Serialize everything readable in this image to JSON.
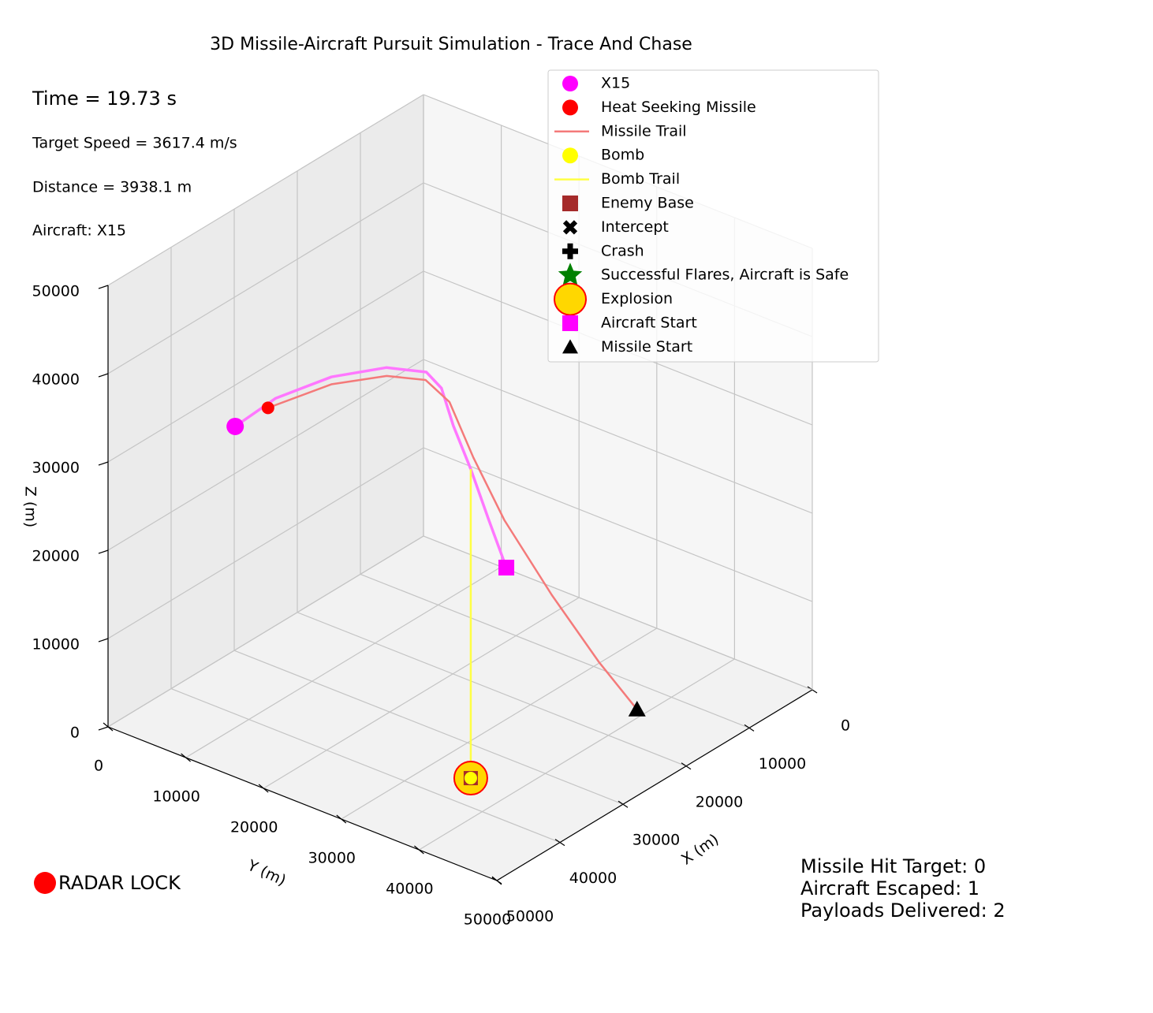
{
  "chart_data": {
    "type": "line3d",
    "title": "3D Missile-Aircraft Pursuit Simulation - Trace And Chase",
    "xlabel": "X (m)",
    "ylabel": "Y (m)",
    "zlabel": "Z (m)",
    "xlim": [
      0,
      50000
    ],
    "ylim": [
      0,
      50000
    ],
    "zlim": [
      0,
      50000
    ],
    "xticks": [
      0,
      10000,
      20000,
      30000,
      40000,
      50000
    ],
    "yticks": [
      0,
      10000,
      20000,
      30000,
      40000,
      50000
    ],
    "zticks": [
      0,
      10000,
      20000,
      30000,
      40000,
      50000
    ],
    "grid": true,
    "legend": "upper right",
    "aircraft_trail": {
      "color": "#ff77ff",
      "x": [
        13800,
        24200,
        35400,
        39400,
        39800,
        39600,
        41400,
        40700,
        43400,
        47600
      ],
      "y": [
        21850,
        28050,
        34800,
        35800,
        34600,
        32500,
        28800,
        21200,
        16200,
        14400
      ],
      "z": [
        10000,
        22000,
        35000,
        42000,
        46000,
        47000,
        47000,
        43000,
        40000,
        38000
      ]
    },
    "series": [
      {
        "name": "X15",
        "marker": "circle",
        "color": "#ff00ff",
        "marker_size": 11,
        "x": [
          47600
        ],
        "y": [
          14400
        ],
        "z": [
          38000
        ]
      },
      {
        "name": "Heat Seeking Missile",
        "marker": "circle",
        "color": "#ff0000",
        "marker_size": 8,
        "x": [
          44000
        ],
        "y": [
          15700
        ],
        "z": [
          39000
        ]
      },
      {
        "name": "Missile Trail",
        "marker": "line",
        "color": "#f47a7a",
        "x": [
          14100,
          17400,
          22300,
          26000,
          29200,
          33100,
          35300,
          38500,
          40500,
          44000
        ],
        "y": [
          38900,
          36700,
          34600,
          31500,
          30100,
          30200,
          28900,
          26500,
          21000,
          15700
        ],
        "z": [
          0,
          6000,
          15000,
          24000,
          32000,
          40000,
          43000,
          44000,
          42000,
          39000
        ]
      },
      {
        "name": "Bomb",
        "marker": "circle",
        "color": "#ffff00",
        "marker_size": 8,
        "x": [
          35400
        ],
        "y": [
          34800
        ],
        "z": [
          0
        ]
      },
      {
        "name": "Bomb Trail",
        "marker": "line",
        "color": "#ffff44",
        "x": [
          35400,
          35400
        ],
        "y": [
          34800,
          34800
        ],
        "z": [
          35000,
          0
        ]
      },
      {
        "name": "Enemy Base",
        "marker": "square",
        "color": "#a52a2a",
        "marker_size": 9,
        "x": [
          35400
        ],
        "y": [
          34800
        ],
        "z": [
          0
        ]
      },
      {
        "name": "Intercept",
        "marker": "x",
        "color": "#000000"
      },
      {
        "name": "Crash",
        "marker": "plus",
        "color": "#000000"
      },
      {
        "name": "Successful Flares, Aircraft is Safe",
        "marker": "star",
        "color": "#008000"
      },
      {
        "name": "Explosion",
        "marker": "circle",
        "color": "#ffd700",
        "edgecolor": "#ff0000",
        "marker_size": 21,
        "x": [
          35400
        ],
        "y": [
          34800
        ],
        "z": [
          0
        ]
      },
      {
        "name": "Aircraft Start",
        "marker": "square",
        "color": "#ff00ff",
        "marker_size": 10,
        "x": [
          13800
        ],
        "y": [
          21850
        ],
        "z": [
          10000
        ]
      },
      {
        "name": "Missile Start",
        "marker": "triangle",
        "color": "#000000",
        "marker_size": 11,
        "x": [
          14100
        ],
        "y": [
          38900
        ],
        "z": [
          0
        ]
      }
    ],
    "info": [
      "Time = 19.73 s",
      "Target Speed = 3617.4 m/s",
      "Distance = 3938.1 m",
      "Aircraft: X15"
    ],
    "radar": {
      "label": "RADAR LOCK",
      "color": "#ff0000"
    },
    "stats": [
      "Missile Hit Target: 0",
      "Aircraft Escaped: 1",
      "Payloads Delivered: 2"
    ]
  }
}
